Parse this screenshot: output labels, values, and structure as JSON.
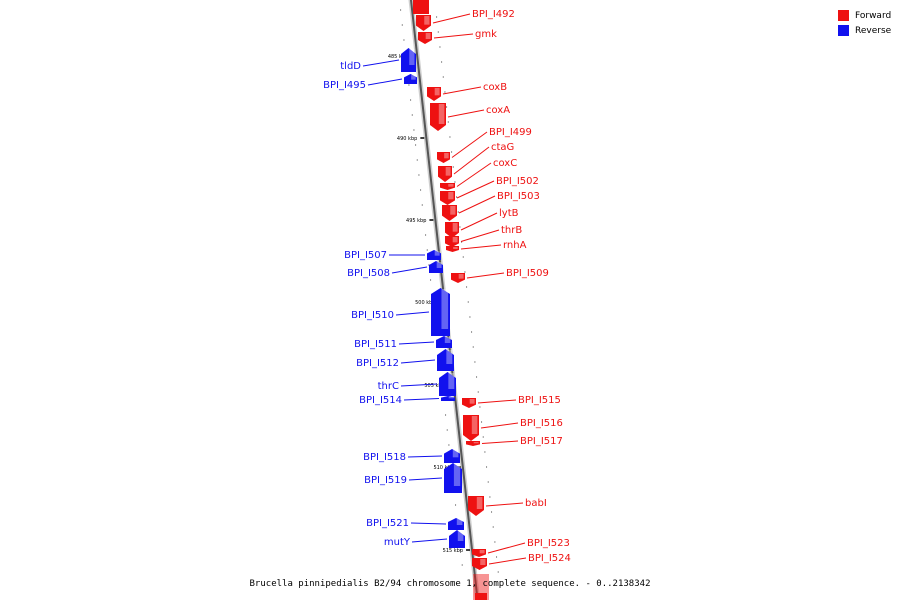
{
  "legend": {
    "forward_label": "Forward",
    "reverse_label": "Reverse",
    "forward_color": "#ee1111",
    "reverse_color": "#1111ee"
  },
  "caption": "Brucella pinnipedialis B2/94 chromosome 1, complete sequence. - 0..2138342",
  "position_markers": [
    "485 kbp",
    "490 kbp",
    "495 kbp",
    "500 kbp",
    "505 kbp",
    "510 kbp",
    "515 kbp"
  ],
  "genes_forward": [
    "BPI_I492",
    "gmk",
    "coxB",
    "coxA",
    "BPI_I499",
    "ctaG",
    "coxC",
    "BPI_I502",
    "BPI_I503",
    "lytB",
    "thrB",
    "rnhA",
    "BPI_I509",
    "BPI_I515",
    "BPI_I516",
    "BPI_I517",
    "babI",
    "BPI_I523",
    "BPI_I524"
  ],
  "genes_reverse": [
    "tldD",
    "BPI_I495",
    "BPI_I507",
    "BPI_I508",
    "BPI_I510",
    "BPI_I511",
    "BPI_I512",
    "thrC",
    "BPI_I514",
    "BPI_I518",
    "BPI_I519",
    "BPI_I521",
    "mutY"
  ]
}
